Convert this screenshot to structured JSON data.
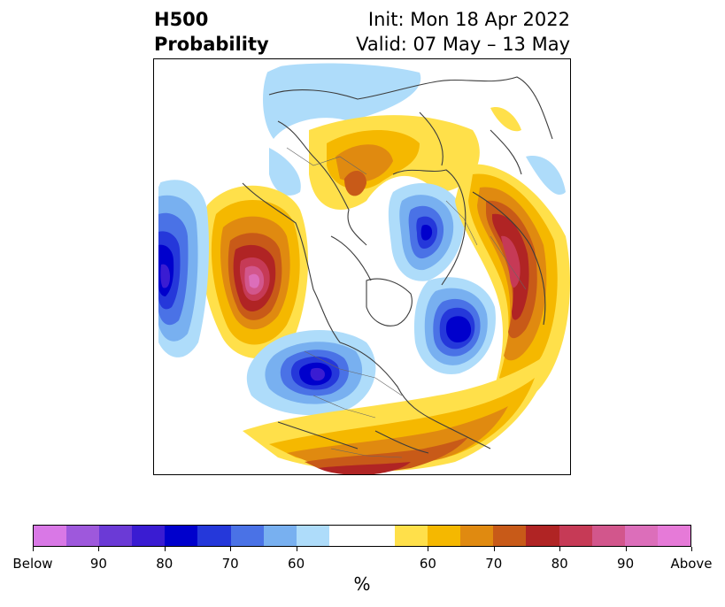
{
  "header": {
    "title_line1": "H500",
    "title_line2": "Probability",
    "init": "Init: Mon 18 Apr 2022",
    "valid": "Valid: 07 May – 13 May"
  },
  "colorbar": {
    "colors": [
      "#d978e6",
      "#9e58dc",
      "#6b3ad6",
      "#3a1cd2",
      "#0000cc",
      "#2538da",
      "#4a72e6",
      "#78b0f0",
      "#aedcfa",
      "#ffffff",
      "#ffffff",
      "#ffe04a",
      "#f5b800",
      "#e08a10",
      "#c85a18",
      "#b02424",
      "#c63a56",
      "#d2568c",
      "#dc6eba",
      "#e67ad8"
    ],
    "tick_labels": [
      "Below",
      "90",
      "80",
      "70",
      "60",
      "60",
      "70",
      "80",
      "90",
      "Above"
    ],
    "unit_label": "%"
  },
  "colors": {
    "above_high": "#e67ad8",
    "above_mid": "#b02424",
    "above_low": "#ffe04a",
    "below_high": "#0000cc",
    "below_mid": "#4a72e6",
    "below_low": "#aedcfa"
  }
}
